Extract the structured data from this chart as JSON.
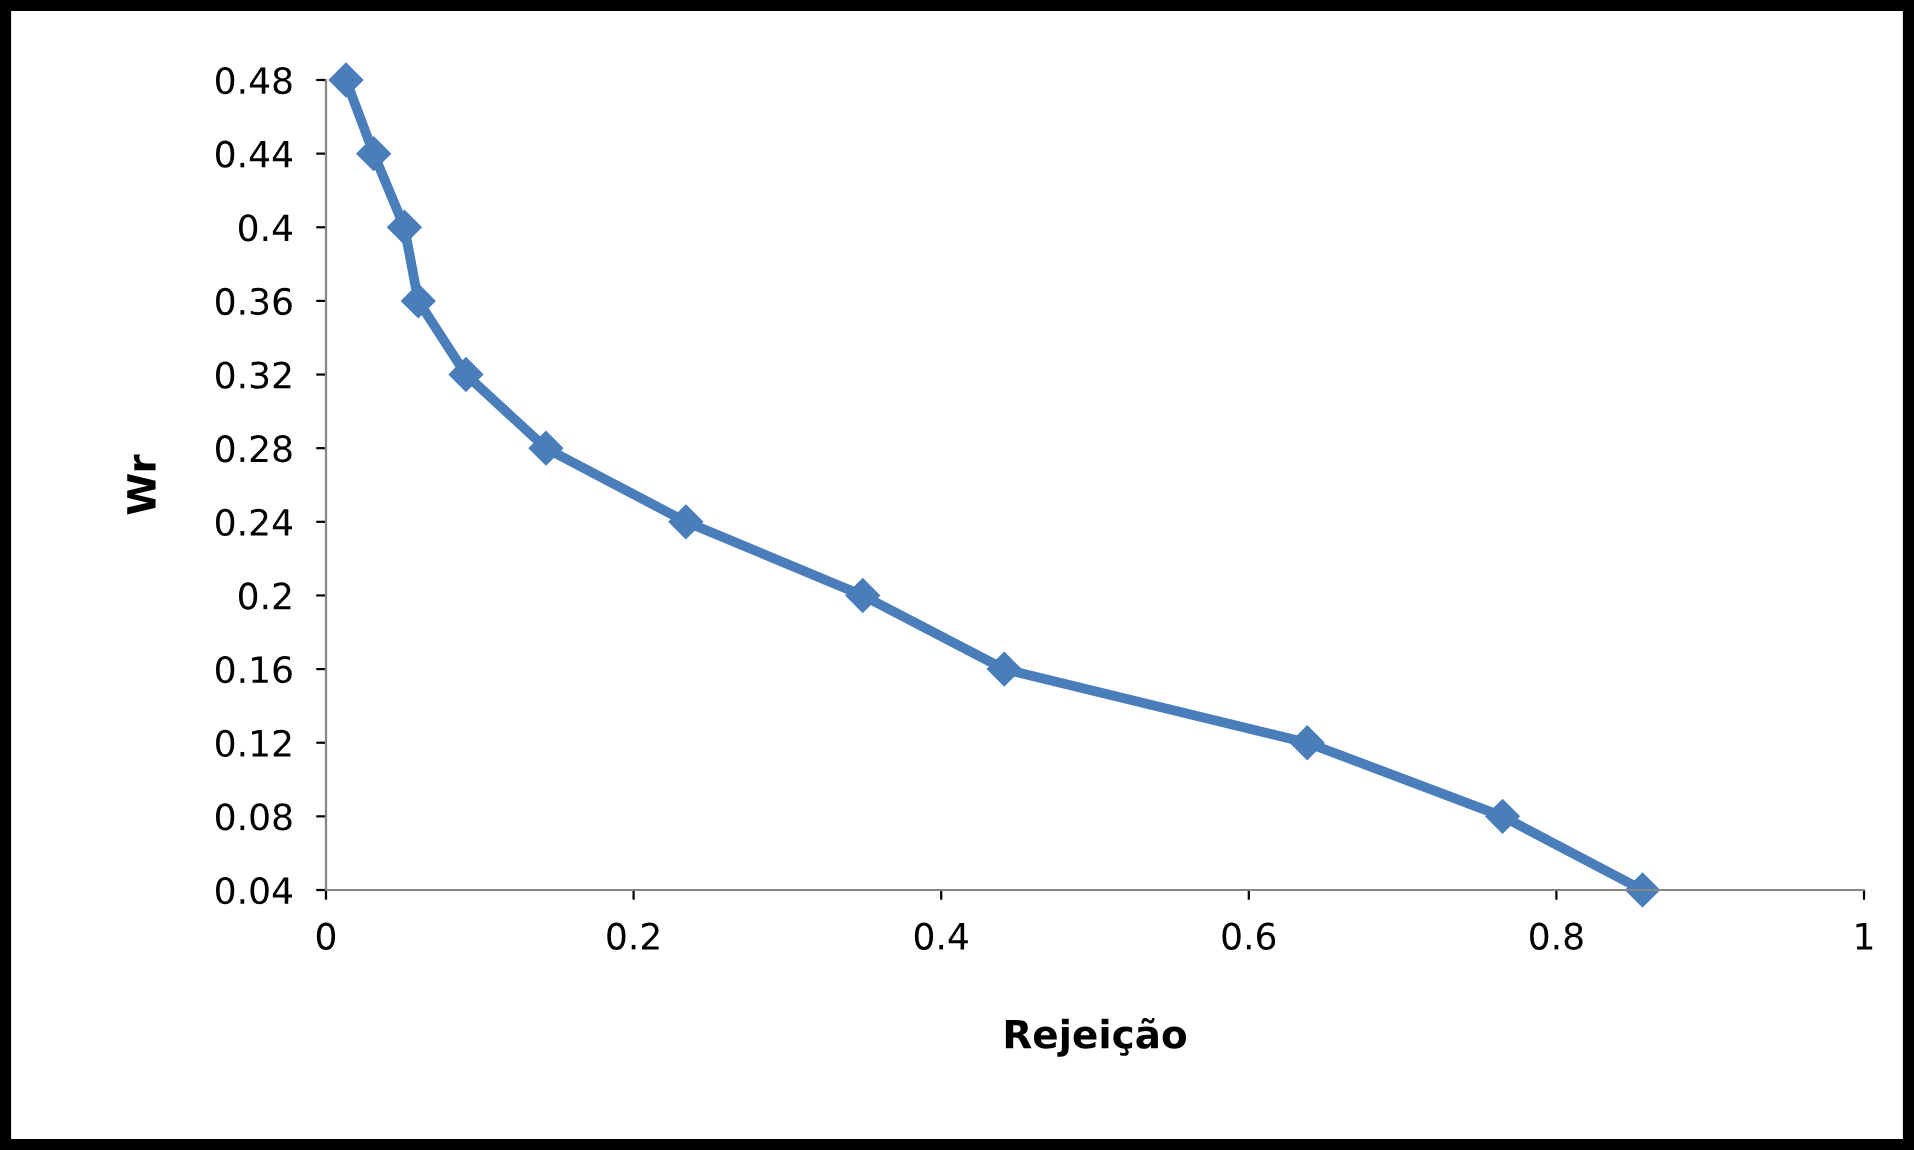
{
  "chart_data": {
    "type": "line",
    "xlabel": "Rejeição",
    "ylabel": "Wr",
    "xlim": [
      0,
      1
    ],
    "xticks": [
      0,
      0.2,
      0.4,
      0.6,
      0.8,
      1
    ],
    "ylim": [
      0.04,
      0.48
    ],
    "yticks": [
      0.04,
      0.08,
      0.12,
      0.16,
      0.2,
      0.24,
      0.28,
      0.32,
      0.36,
      0.4,
      0.44,
      0.48
    ],
    "grid": false,
    "legend": false,
    "marker": "diamond",
    "line_style": "solid",
    "series": [
      {
        "color": "#4a7ebb",
        "x": [
          0.013,
          0.031,
          0.051,
          0.06,
          0.091,
          0.143,
          0.234,
          0.349,
          0.441,
          0.638,
          0.765,
          0.856
        ],
        "values": [
          0.48,
          0.44,
          0.4,
          0.36,
          0.32,
          0.28,
          0.24,
          0.2,
          0.16,
          0.12,
          0.08,
          0.04
        ]
      }
    ]
  }
}
